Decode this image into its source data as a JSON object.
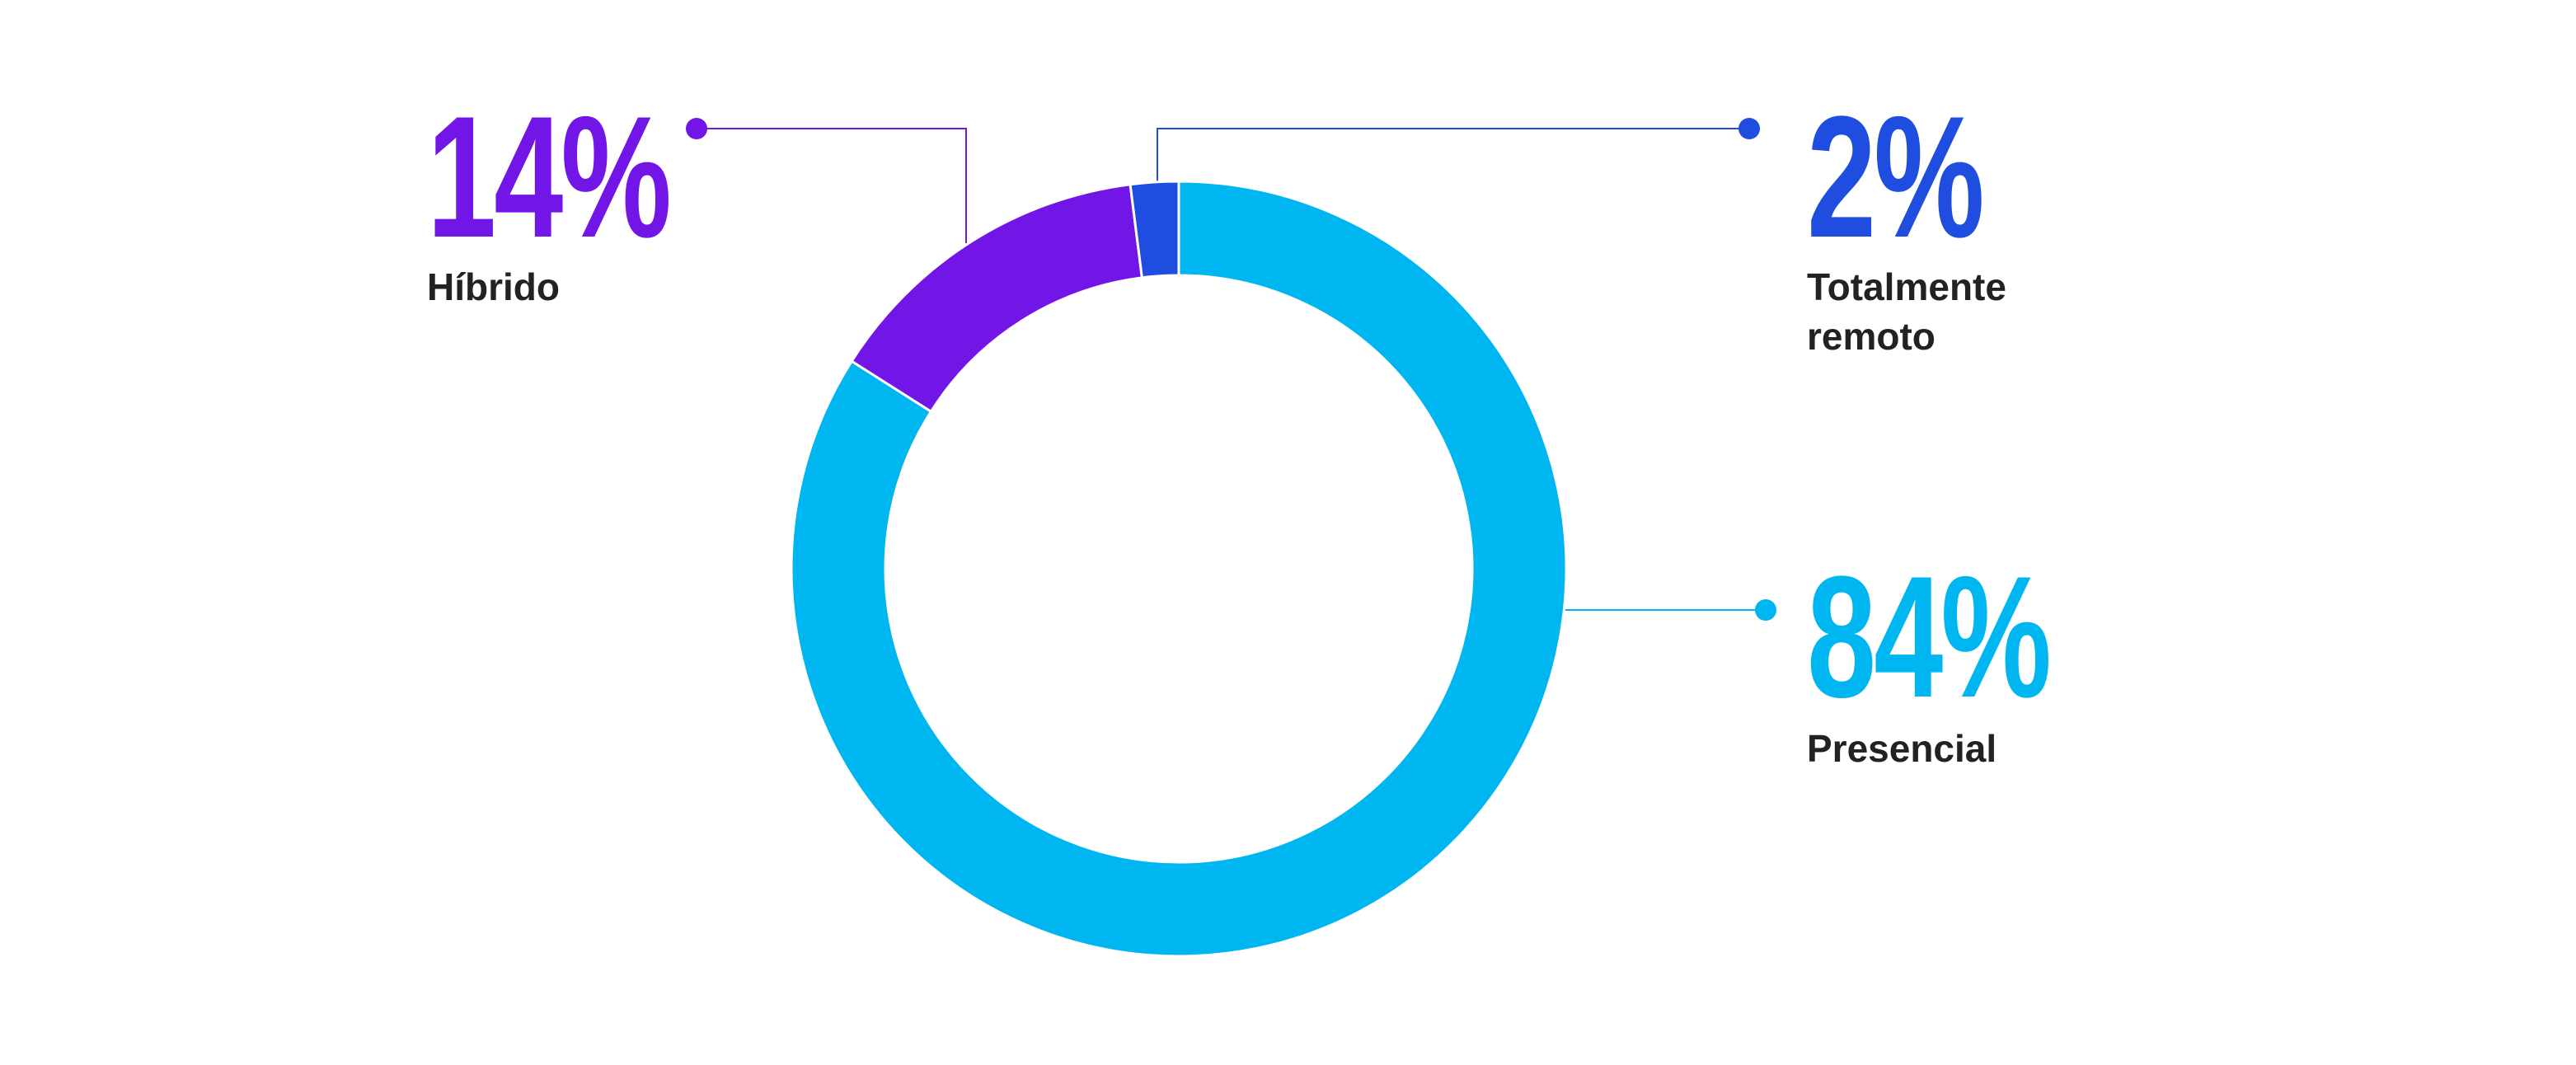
{
  "chart_data": {
    "type": "pie",
    "categories": [
      "Presencial",
      "Híbrido",
      "Totalmente remoto"
    ],
    "values": [
      84,
      14,
      2
    ],
    "value_labels": [
      "84%",
      "14%",
      "2%"
    ],
    "colors": [
      "#00b6f1",
      "#7216e8",
      "#1f4de0"
    ]
  }
}
